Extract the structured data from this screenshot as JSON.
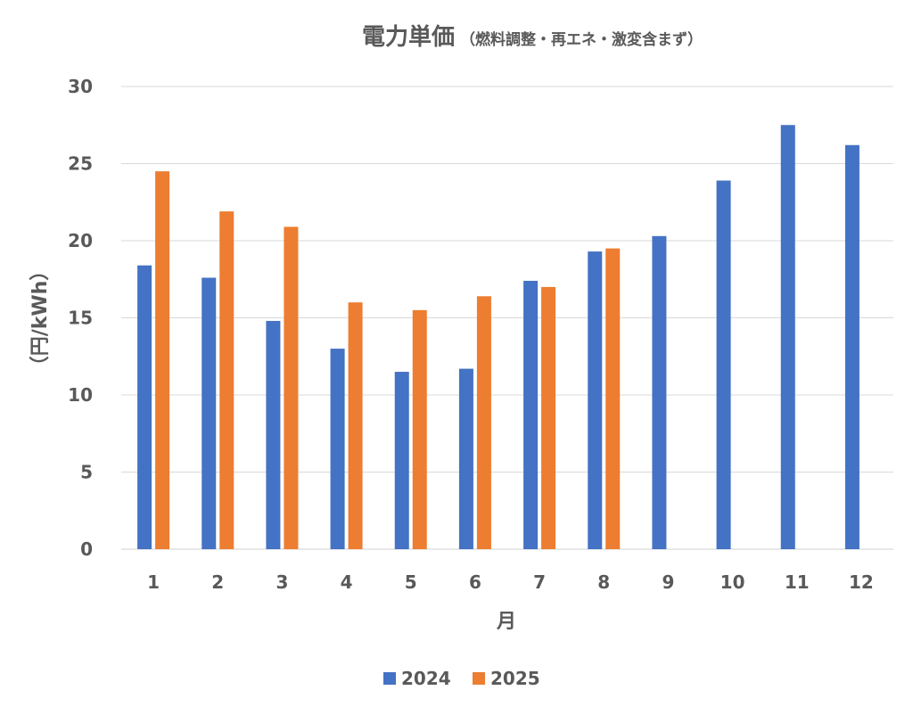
{
  "chart_data": {
    "type": "bar",
    "title": "電力単価",
    "subtitle": "（燃料調整・再エネ・激変含まず）",
    "xlabel": "月",
    "ylabel": "（円/kWh）",
    "ylim": [
      0,
      30
    ],
    "yticks": [
      0,
      5,
      10,
      15,
      20,
      25,
      30
    ],
    "grid": true,
    "legend_position": "bottom",
    "categories": [
      "1",
      "2",
      "3",
      "4",
      "5",
      "6",
      "7",
      "8",
      "9",
      "10",
      "11",
      "12"
    ],
    "series": [
      {
        "name": "2024",
        "color": "#4472c4",
        "values": [
          18.4,
          17.6,
          14.8,
          13.0,
          11.5,
          11.7,
          17.4,
          19.3,
          20.3,
          23.9,
          27.5,
          26.2
        ]
      },
      {
        "name": "2025",
        "color": "#ed7d31",
        "values": [
          24.5,
          21.9,
          20.9,
          16.0,
          15.5,
          16.4,
          17.0,
          19.5,
          null,
          null,
          null,
          null
        ]
      }
    ]
  }
}
